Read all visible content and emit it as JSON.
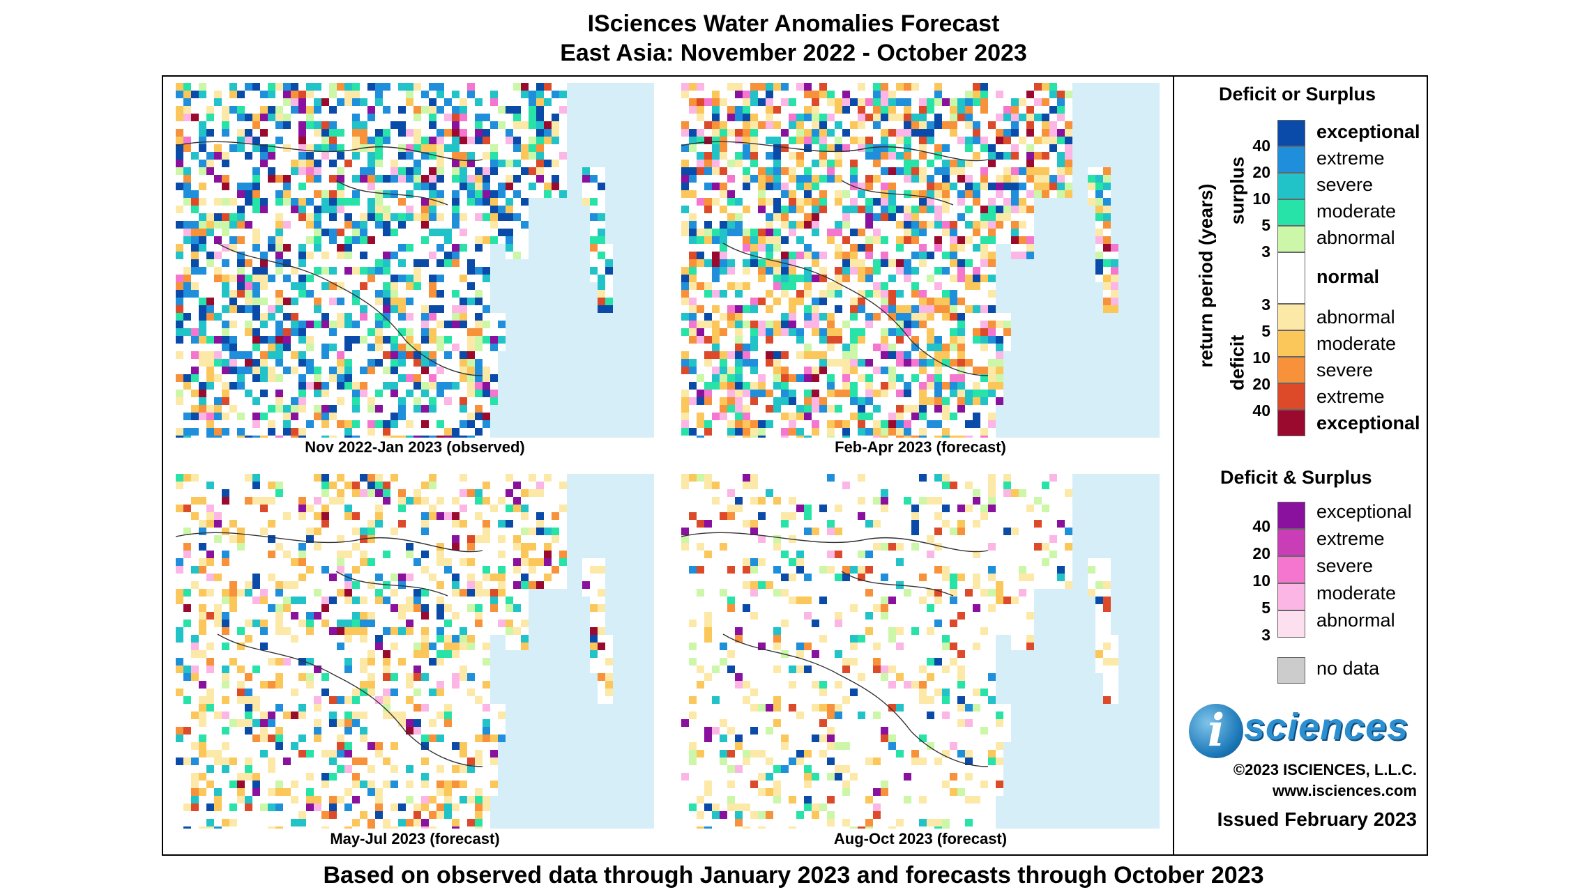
{
  "title_line1": "ISciences Water Anomalies Forecast",
  "title_line2": "East Asia: November 2022 - October 2023",
  "footer": "Based on observed data through January 2023 and forecasts through October 2023",
  "maps": [
    {
      "caption": "Nov 2022-Jan 2023 (observed)"
    },
    {
      "caption": "Feb-Apr 2023 (forecast)"
    },
    {
      "caption": "May-Jul 2023 (forecast)"
    },
    {
      "caption": "Aug-Oct 2023 (forecast)"
    }
  ],
  "legend": {
    "deficit_or_surplus_title": "Deficit or Surplus",
    "axis_label": "return period (years)",
    "surplus_label": "surplus",
    "deficit_label": "deficit",
    "surplus_numbers": [
      "40",
      "20",
      "10",
      "5",
      "3"
    ],
    "deficit_numbers": [
      "3",
      "5",
      "10",
      "20",
      "40"
    ],
    "surplus_classes": [
      {
        "label": "exceptional",
        "color": "#0a4aa8"
      },
      {
        "label": "extreme",
        "color": "#1f8fdc"
      },
      {
        "label": "severe",
        "color": "#22c3c8"
      },
      {
        "label": "moderate",
        "color": "#27e3a7"
      },
      {
        "label": "abnormal",
        "color": "#ccf7a8"
      }
    ],
    "normal_label": "normal",
    "deficit_classes": [
      {
        "label": "abnormal",
        "color": "#fde9a7"
      },
      {
        "label": "moderate",
        "color": "#fcc75a"
      },
      {
        "label": "severe",
        "color": "#f7913a"
      },
      {
        "label": "extreme",
        "color": "#dc4a2a"
      },
      {
        "label": "exceptional",
        "color": "#990a2e"
      }
    ],
    "both_title": "Deficit & Surplus",
    "both_numbers": [
      "40",
      "20",
      "10",
      "5",
      "3"
    ],
    "both_classes": [
      {
        "label": "exceptional",
        "color": "#8a109e"
      },
      {
        "label": "extreme",
        "color": "#c93db7"
      },
      {
        "label": "severe",
        "color": "#f476cf"
      },
      {
        "label": "moderate",
        "color": "#fbb6e6"
      },
      {
        "label": "abnormal",
        "color": "#fde0ef"
      }
    ],
    "no_data_label": "no data",
    "no_data_color": "#cccccc"
  },
  "branding": {
    "logo_letter": "i",
    "logo_word": "sciences",
    "copyright": "©2023 ISCIENCES, L.L.C.",
    "website": "www.isciences.com",
    "issued": "Issued February 2023"
  }
}
